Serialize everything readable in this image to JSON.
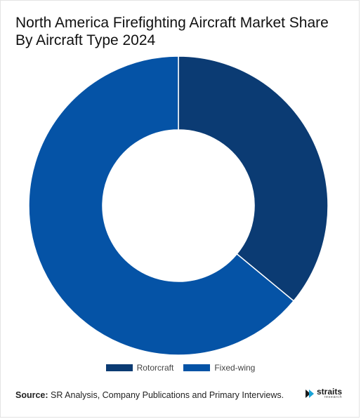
{
  "title": "North America Firefighting Aircraft Market Share By Aircraft Type 2024",
  "chart_data": {
    "type": "pie",
    "donut": true,
    "title": "North America Firefighting Aircraft Market Share By Aircraft Type 2024",
    "categories": [
      "Rotorcraft",
      "Fixed-wing"
    ],
    "values": [
      36,
      64
    ],
    "colors": [
      "#0b3b73",
      "#0553a6"
    ],
    "legend_position": "bottom"
  },
  "legend": [
    {
      "label": "Rotorcraft",
      "color": "#0b3b73"
    },
    {
      "label": "Fixed-wing",
      "color": "#0553a6"
    }
  ],
  "source": {
    "label": "Source:",
    "text": " SR Analysis, Company Publications and Primary Interviews."
  },
  "logo": {
    "name": "straits",
    "sub": "research"
  }
}
